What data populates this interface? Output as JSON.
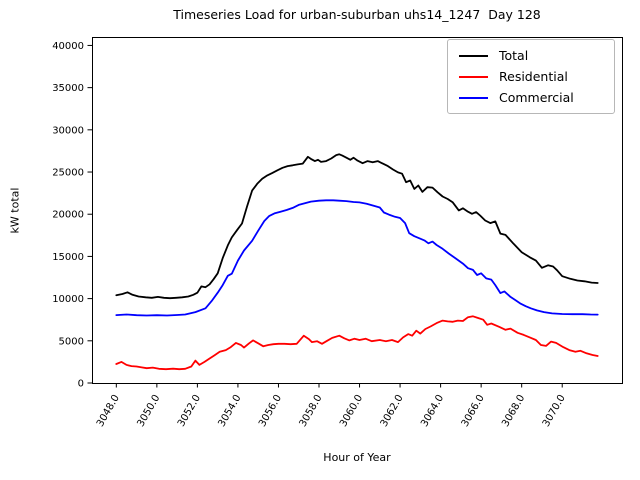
{
  "figure": {
    "title": "Timeseries Load for urban-suburban uhs14_1247  Day 128",
    "xlabel": "Hour of Year",
    "ylabel": "kW total",
    "background_color": "#ffffff"
  },
  "chart_data": {
    "type": "line",
    "title": "Timeseries Load for urban-suburban uhs14_1247  Day 128",
    "xlabel": "Hour of Year",
    "ylabel": "kW total",
    "grid": false,
    "legend_position": "upper right",
    "xlim": [
      3046.8,
      3072.95
    ],
    "ylim": [
      0,
      41000
    ],
    "xticks": {
      "values": [
        3048,
        3050,
        3052,
        3054,
        3056,
        3058,
        3060,
        3062,
        3064,
        3066,
        3068,
        3070
      ],
      "labels": [
        "3048.0",
        "3050.0",
        "3052.0",
        "3054.0",
        "3056.0",
        "3058.0",
        "3060.0",
        "3062.0",
        "3064.0",
        "3066.0",
        "3068.0",
        "3070.0"
      ]
    },
    "yticks": {
      "values": [
        0,
        5000,
        10000,
        15000,
        20000,
        25000,
        30000,
        35000,
        40000
      ],
      "labels": [
        "0",
        "5000",
        "10000",
        "15000",
        "20000",
        "25000",
        "30000",
        "35000",
        "40000"
      ]
    },
    "series": [
      {
        "name": "Total",
        "color": "#000000",
        "points": [
          [
            3048.0,
            10400
          ],
          [
            3048.3,
            10550
          ],
          [
            3048.55,
            10750
          ],
          [
            3048.8,
            10450
          ],
          [
            3049.1,
            10250
          ],
          [
            3049.45,
            10150
          ],
          [
            3049.75,
            10100
          ],
          [
            3050.05,
            10200
          ],
          [
            3050.35,
            10100
          ],
          [
            3050.65,
            10050
          ],
          [
            3050.95,
            10100
          ],
          [
            3051.25,
            10150
          ],
          [
            3051.55,
            10250
          ],
          [
            3051.8,
            10450
          ],
          [
            3052.0,
            10700
          ],
          [
            3052.2,
            11450
          ],
          [
            3052.4,
            11350
          ],
          [
            3052.6,
            11700
          ],
          [
            3052.8,
            12300
          ],
          [
            3053.0,
            13000
          ],
          [
            3053.25,
            14800
          ],
          [
            3053.5,
            16300
          ],
          [
            3053.7,
            17250
          ],
          [
            3053.95,
            18100
          ],
          [
            3054.2,
            18900
          ],
          [
            3054.45,
            20900
          ],
          [
            3054.7,
            22800
          ],
          [
            3054.95,
            23600
          ],
          [
            3055.2,
            24200
          ],
          [
            3055.45,
            24600
          ],
          [
            3055.7,
            24900
          ],
          [
            3055.95,
            25200
          ],
          [
            3056.2,
            25500
          ],
          [
            3056.45,
            25700
          ],
          [
            3056.7,
            25800
          ],
          [
            3056.95,
            25900
          ],
          [
            3057.2,
            26000
          ],
          [
            3057.45,
            26800
          ],
          [
            3057.6,
            26550
          ],
          [
            3057.8,
            26300
          ],
          [
            3057.95,
            26450
          ],
          [
            3058.1,
            26200
          ],
          [
            3058.35,
            26300
          ],
          [
            3058.6,
            26600
          ],
          [
            3058.85,
            27000
          ],
          [
            3059.0,
            27100
          ],
          [
            3059.15,
            26950
          ],
          [
            3059.35,
            26700
          ],
          [
            3059.55,
            26450
          ],
          [
            3059.7,
            26700
          ],
          [
            3059.9,
            26350
          ],
          [
            3060.15,
            26050
          ],
          [
            3060.4,
            26300
          ],
          [
            3060.65,
            26150
          ],
          [
            3060.9,
            26300
          ],
          [
            3061.15,
            26000
          ],
          [
            3061.4,
            25700
          ],
          [
            3061.65,
            25300
          ],
          [
            3061.9,
            24950
          ],
          [
            3062.1,
            24800
          ],
          [
            3062.3,
            23800
          ],
          [
            3062.5,
            24000
          ],
          [
            3062.7,
            23000
          ],
          [
            3062.9,
            23400
          ],
          [
            3063.1,
            22650
          ],
          [
            3063.35,
            23200
          ],
          [
            3063.6,
            23150
          ],
          [
            3063.85,
            22600
          ],
          [
            3064.1,
            22100
          ],
          [
            3064.35,
            21800
          ],
          [
            3064.6,
            21400
          ],
          [
            3064.9,
            20450
          ],
          [
            3065.1,
            20700
          ],
          [
            3065.35,
            20300
          ],
          [
            3065.55,
            20050
          ],
          [
            3065.75,
            20250
          ],
          [
            3065.95,
            19850
          ],
          [
            3066.2,
            19250
          ],
          [
            3066.45,
            18950
          ],
          [
            3066.7,
            19150
          ],
          [
            3066.95,
            17700
          ],
          [
            3067.2,
            17550
          ],
          [
            3067.6,
            16500
          ],
          [
            3068.0,
            15500
          ],
          [
            3068.4,
            14900
          ],
          [
            3068.7,
            14500
          ],
          [
            3069.0,
            13650
          ],
          [
            3069.3,
            13950
          ],
          [
            3069.55,
            13800
          ],
          [
            3069.75,
            13350
          ],
          [
            3070.0,
            12650
          ],
          [
            3070.4,
            12350
          ],
          [
            3070.75,
            12150
          ],
          [
            3071.1,
            12050
          ],
          [
            3071.45,
            11900
          ],
          [
            3071.75,
            11850
          ]
        ]
      },
      {
        "name": "Residential",
        "color": "#ff0000",
        "points": [
          [
            3048.0,
            2250
          ],
          [
            3048.25,
            2500
          ],
          [
            3048.5,
            2150
          ],
          [
            3048.75,
            2000
          ],
          [
            3049.0,
            1950
          ],
          [
            3049.25,
            1850
          ],
          [
            3049.5,
            1750
          ],
          [
            3049.8,
            1820
          ],
          [
            3050.1,
            1680
          ],
          [
            3050.45,
            1630
          ],
          [
            3050.8,
            1700
          ],
          [
            3051.1,
            1630
          ],
          [
            3051.4,
            1680
          ],
          [
            3051.7,
            1950
          ],
          [
            3051.9,
            2650
          ],
          [
            3052.1,
            2150
          ],
          [
            3052.35,
            2500
          ],
          [
            3052.6,
            2900
          ],
          [
            3052.85,
            3300
          ],
          [
            3053.1,
            3700
          ],
          [
            3053.4,
            3900
          ],
          [
            3053.65,
            4250
          ],
          [
            3053.9,
            4750
          ],
          [
            3054.15,
            4500
          ],
          [
            3054.3,
            4200
          ],
          [
            3054.55,
            4700
          ],
          [
            3054.75,
            5050
          ],
          [
            3055.0,
            4700
          ],
          [
            3055.25,
            4350
          ],
          [
            3055.5,
            4500
          ],
          [
            3055.75,
            4600
          ],
          [
            3056.0,
            4650
          ],
          [
            3056.3,
            4650
          ],
          [
            3056.6,
            4600
          ],
          [
            3056.9,
            4650
          ],
          [
            3057.25,
            5600
          ],
          [
            3057.5,
            5200
          ],
          [
            3057.65,
            4850
          ],
          [
            3057.9,
            4950
          ],
          [
            3058.15,
            4650
          ],
          [
            3058.4,
            5000
          ],
          [
            3058.65,
            5350
          ],
          [
            3059.0,
            5600
          ],
          [
            3059.25,
            5300
          ],
          [
            3059.5,
            5050
          ],
          [
            3059.75,
            5250
          ],
          [
            3060.0,
            5100
          ],
          [
            3060.3,
            5250
          ],
          [
            3060.6,
            4950
          ],
          [
            3061.0,
            5100
          ],
          [
            3061.3,
            4950
          ],
          [
            3061.6,
            5100
          ],
          [
            3061.9,
            4850
          ],
          [
            3062.15,
            5400
          ],
          [
            3062.4,
            5800
          ],
          [
            3062.6,
            5600
          ],
          [
            3062.8,
            6200
          ],
          [
            3063.0,
            5850
          ],
          [
            3063.25,
            6400
          ],
          [
            3063.5,
            6700
          ],
          [
            3063.8,
            7100
          ],
          [
            3064.1,
            7400
          ],
          [
            3064.35,
            7300
          ],
          [
            3064.6,
            7250
          ],
          [
            3064.85,
            7400
          ],
          [
            3065.1,
            7350
          ],
          [
            3065.35,
            7800
          ],
          [
            3065.6,
            7900
          ],
          [
            3065.85,
            7700
          ],
          [
            3066.1,
            7500
          ],
          [
            3066.3,
            6900
          ],
          [
            3066.5,
            7050
          ],
          [
            3066.9,
            6650
          ],
          [
            3067.2,
            6300
          ],
          [
            3067.45,
            6450
          ],
          [
            3067.8,
            5950
          ],
          [
            3068.1,
            5700
          ],
          [
            3068.4,
            5400
          ],
          [
            3068.7,
            5100
          ],
          [
            3068.95,
            4500
          ],
          [
            3069.2,
            4400
          ],
          [
            3069.45,
            4900
          ],
          [
            3069.7,
            4750
          ],
          [
            3070.05,
            4250
          ],
          [
            3070.35,
            3900
          ],
          [
            3070.65,
            3700
          ],
          [
            3070.9,
            3820
          ],
          [
            3071.2,
            3520
          ],
          [
            3071.5,
            3320
          ],
          [
            3071.75,
            3200
          ]
        ]
      },
      {
        "name": "Commercial",
        "color": "#0000ff",
        "points": [
          [
            3048.0,
            8050
          ],
          [
            3048.5,
            8120
          ],
          [
            3049.0,
            8030
          ],
          [
            3049.5,
            8000
          ],
          [
            3050.0,
            8030
          ],
          [
            3050.5,
            8000
          ],
          [
            3051.0,
            8060
          ],
          [
            3051.4,
            8120
          ],
          [
            3051.9,
            8400
          ],
          [
            3052.4,
            8850
          ],
          [
            3052.7,
            9700
          ],
          [
            3053.0,
            10700
          ],
          [
            3053.25,
            11600
          ],
          [
            3053.5,
            12700
          ],
          [
            3053.7,
            12950
          ],
          [
            3054.0,
            14500
          ],
          [
            3054.3,
            15700
          ],
          [
            3054.7,
            16850
          ],
          [
            3055.0,
            18050
          ],
          [
            3055.3,
            19200
          ],
          [
            3055.55,
            19800
          ],
          [
            3055.8,
            20100
          ],
          [
            3056.1,
            20300
          ],
          [
            3056.4,
            20500
          ],
          [
            3056.7,
            20750
          ],
          [
            3057.0,
            21100
          ],
          [
            3057.3,
            21300
          ],
          [
            3057.6,
            21500
          ],
          [
            3058.0,
            21600
          ],
          [
            3058.35,
            21650
          ],
          [
            3058.7,
            21650
          ],
          [
            3059.0,
            21600
          ],
          [
            3059.35,
            21550
          ],
          [
            3059.7,
            21450
          ],
          [
            3060.0,
            21400
          ],
          [
            3060.35,
            21250
          ],
          [
            3060.7,
            21000
          ],
          [
            3061.0,
            20800
          ],
          [
            3061.2,
            20200
          ],
          [
            3061.45,
            19950
          ],
          [
            3061.75,
            19700
          ],
          [
            3062.0,
            19550
          ],
          [
            3062.25,
            18950
          ],
          [
            3062.45,
            17750
          ],
          [
            3062.7,
            17400
          ],
          [
            3063.0,
            17100
          ],
          [
            3063.2,
            16900
          ],
          [
            3063.4,
            16550
          ],
          [
            3063.6,
            16750
          ],
          [
            3063.8,
            16350
          ],
          [
            3064.1,
            15900
          ],
          [
            3064.4,
            15350
          ],
          [
            3064.75,
            14750
          ],
          [
            3065.1,
            14150
          ],
          [
            3065.35,
            13600
          ],
          [
            3065.6,
            13400
          ],
          [
            3065.8,
            12800
          ],
          [
            3066.0,
            13000
          ],
          [
            3066.25,
            12400
          ],
          [
            3066.5,
            12250
          ],
          [
            3066.7,
            11600
          ],
          [
            3066.95,
            10650
          ],
          [
            3067.15,
            10850
          ],
          [
            3067.45,
            10200
          ],
          [
            3067.7,
            9800
          ],
          [
            3067.95,
            9400
          ],
          [
            3068.2,
            9100
          ],
          [
            3068.45,
            8850
          ],
          [
            3068.75,
            8600
          ],
          [
            3069.1,
            8400
          ],
          [
            3069.5,
            8250
          ],
          [
            3070.0,
            8180
          ],
          [
            3070.5,
            8150
          ],
          [
            3071.0,
            8150
          ],
          [
            3071.4,
            8120
          ],
          [
            3071.75,
            8100
          ]
        ]
      }
    ]
  }
}
